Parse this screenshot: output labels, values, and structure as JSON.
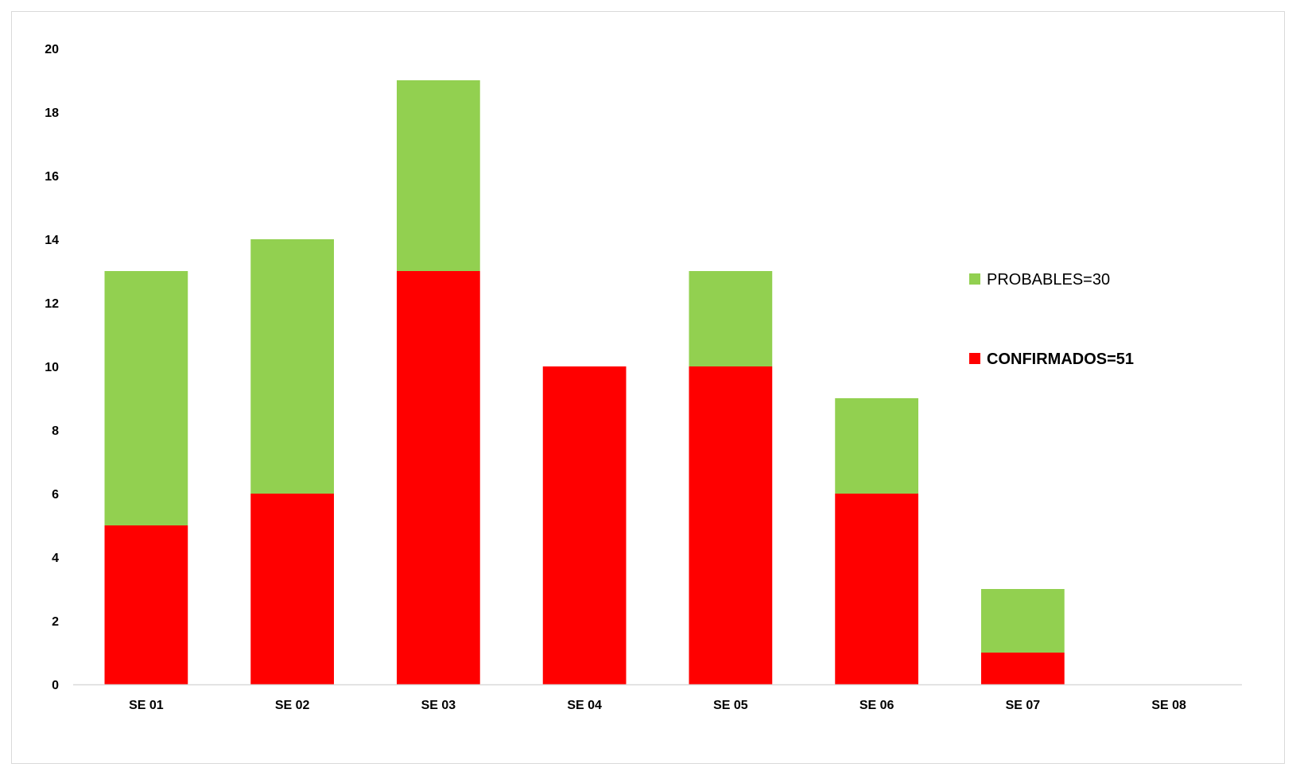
{
  "chart_data": {
    "type": "bar",
    "stacked": true,
    "categories": [
      "SE 01",
      "SE 02",
      "SE 03",
      "SE 04",
      "SE 05",
      "SE 06",
      "SE 07",
      "SE 08"
    ],
    "series": [
      {
        "name": "CONFIRMADOS=51",
        "color": "#ff0000",
        "values": [
          5,
          6,
          13,
          10,
          10,
          6,
          1,
          0
        ]
      },
      {
        "name": "PROBABLES=30",
        "color": "#92d050",
        "values": [
          8,
          8,
          6,
          0,
          3,
          3,
          2,
          0
        ]
      }
    ],
    "ylim": [
      0,
      20
    ],
    "yticks": [
      0,
      2,
      4,
      6,
      8,
      10,
      12,
      14,
      16,
      18,
      20
    ],
    "legend": {
      "placement": "right",
      "items": [
        {
          "label": "PROBABLES=30",
          "color": "#92d050",
          "bold": false
        },
        {
          "label": "CONFIRMADOS=51",
          "color": "#ff0000",
          "bold": true
        }
      ]
    },
    "grid": false,
    "title": "",
    "xlabel": "",
    "ylabel": ""
  }
}
